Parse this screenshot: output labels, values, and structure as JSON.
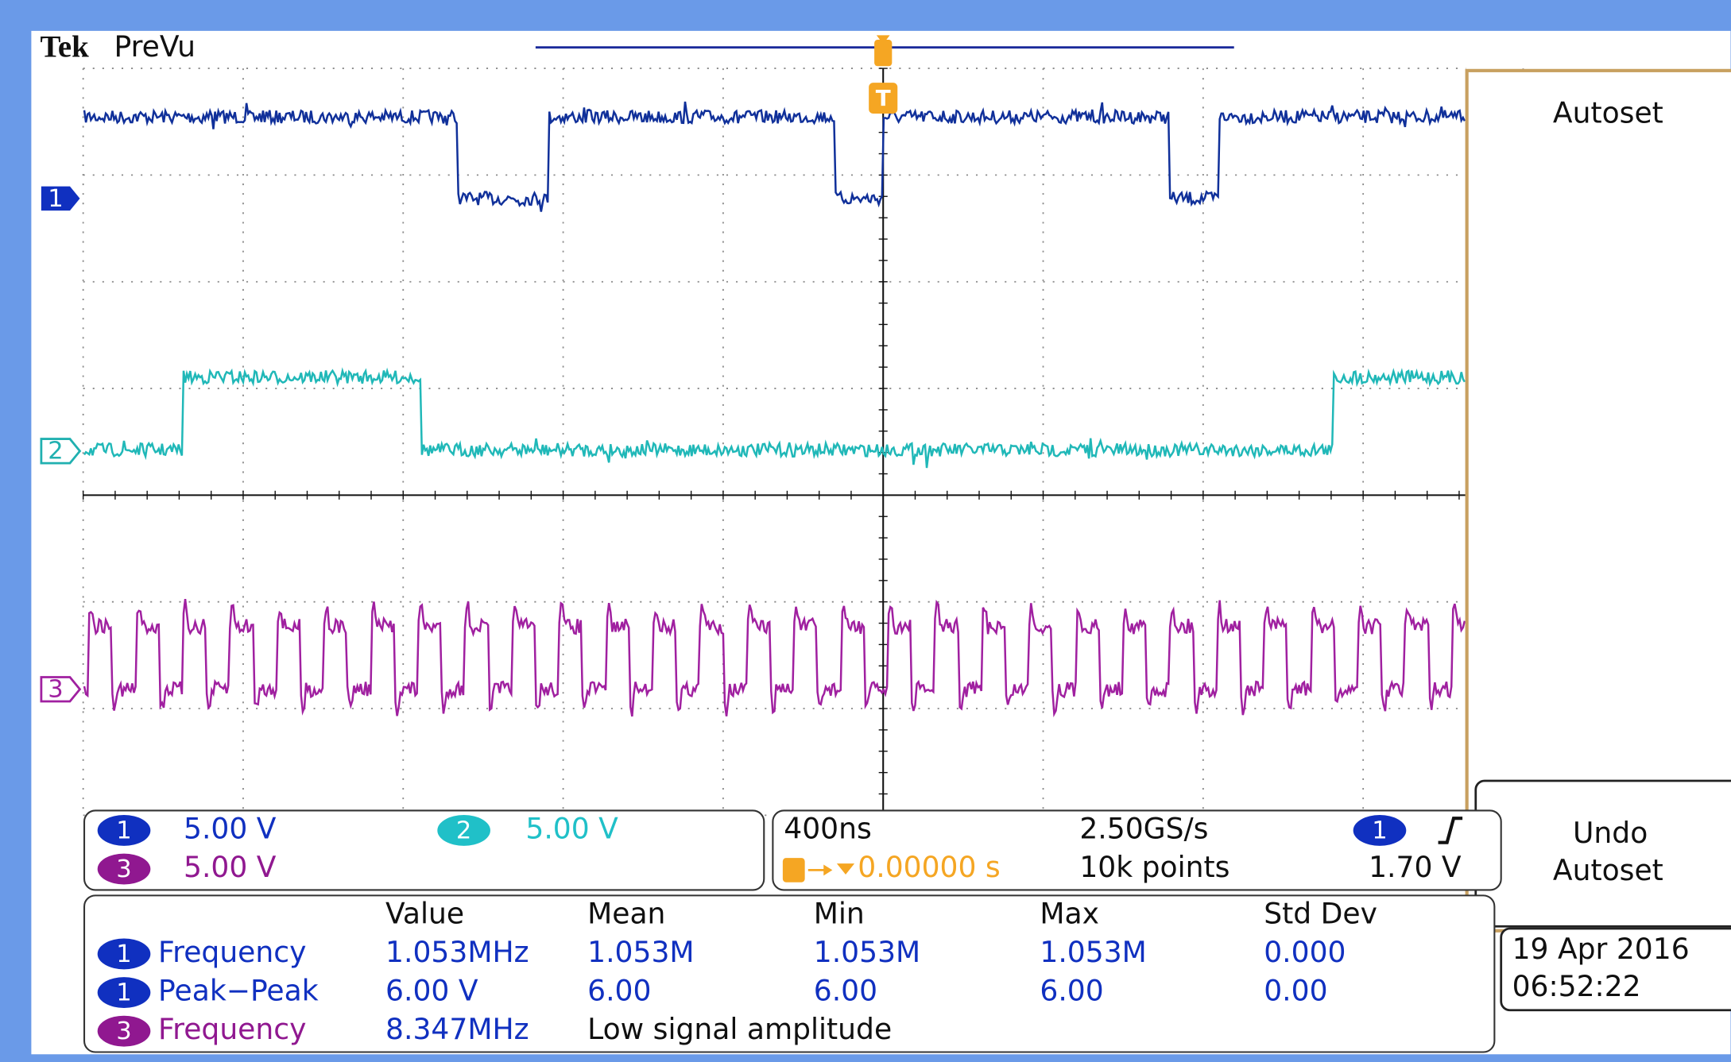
{
  "header": {
    "brand": "Tek",
    "mode": "PreVu"
  },
  "channel_markers": [
    "1",
    "2",
    "3"
  ],
  "trigger_marker": "T",
  "side_menu": {
    "autoset": "Autoset",
    "undo_autoset": [
      "Undo",
      "Autoset"
    ]
  },
  "vertical": [
    {
      "channel": "1",
      "scale": "5.00 V"
    },
    {
      "channel": "2",
      "scale": "5.00 V"
    },
    {
      "channel": "3",
      "scale": "5.00 V"
    }
  ],
  "horizontal": {
    "timebase": "400ns",
    "trigger_position": "0.00000 s",
    "sample_rate": "2.50GS/s",
    "record_length": "10k points",
    "trigger_channel": "1",
    "trigger_level": "1.70 V"
  },
  "measurements": {
    "headers": [
      "Value",
      "Mean",
      "Min",
      "Max",
      "Std Dev"
    ],
    "rows": [
      {
        "channel": "1",
        "name": "Frequency",
        "values": [
          "1.053MHz",
          "1.053M",
          "1.053M",
          "1.053M",
          "0.000"
        ]
      },
      {
        "channel": "1",
        "name": "Peak−Peak",
        "values": [
          "6.00 V",
          "6.00",
          "6.00",
          "6.00",
          "0.00"
        ]
      },
      {
        "channel": "3",
        "name": "Frequency",
        "values": [
          "8.347MHz"
        ],
        "note": "Low signal amplitude"
      }
    ]
  },
  "datetime": {
    "date": "19 Apr 2016",
    "time": "06:52:22"
  }
}
